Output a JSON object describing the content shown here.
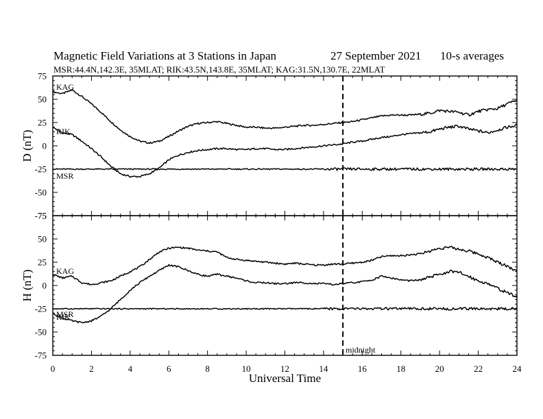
{
  "header": {
    "title": "Magnetic Field Variations at 3 Stations in Japan",
    "date": "27 September 2021",
    "averages": "10-s averages",
    "stations": "MSR:44.4N,142.3E, 35MLAT;  RIK:43.5N,143.8E, 35MLAT;  KAG:31.5N,130.7E, 22MLAT"
  },
  "chart_data": [
    {
      "type": "line",
      "panel": "D",
      "ylabel": "D (nT)",
      "xlim": [
        0,
        24
      ],
      "ylim": [
        -75,
        75
      ],
      "yticks": [
        75,
        50,
        25,
        0,
        -25,
        -50,
        -75
      ],
      "xticks": [],
      "marker": {
        "x": 15,
        "label": ""
      },
      "series": [
        {
          "name": "KAG",
          "x": [
            0,
            0.5,
            1,
            1.5,
            2,
            2.5,
            3,
            3.5,
            4,
            4.5,
            5,
            5.5,
            6,
            6.5,
            7,
            7.5,
            8,
            8.5,
            9,
            9.5,
            10,
            10.5,
            11,
            11.5,
            12,
            12.5,
            13,
            13.5,
            14,
            14.5,
            15,
            15.5,
            16,
            16.5,
            17,
            17.5,
            18,
            18.5,
            19,
            19.5,
            20,
            20.5,
            21,
            21.5,
            22,
            22.5,
            23,
            23.5,
            24
          ],
          "values": [
            58,
            56,
            60,
            53,
            45,
            36,
            26,
            17,
            10,
            5,
            3,
            5,
            10,
            16,
            21,
            24,
            25,
            26,
            24,
            22,
            20,
            20,
            19,
            19,
            20,
            21,
            22,
            22,
            23,
            24,
            25,
            26,
            28,
            30,
            32,
            33,
            33,
            33,
            34,
            35,
            38,
            37,
            36,
            33,
            37,
            39,
            40,
            45,
            49
          ]
        },
        {
          "name": "RIK",
          "x": [
            0,
            0.5,
            1,
            1.5,
            2,
            2.5,
            3,
            3.5,
            4,
            4.5,
            5,
            5.5,
            6,
            6.5,
            7,
            7.5,
            8,
            8.5,
            9,
            9.5,
            10,
            10.5,
            11,
            11.5,
            12,
            12.5,
            13,
            13.5,
            14,
            14.5,
            15,
            15.5,
            16,
            16.5,
            17,
            17.5,
            18,
            18.5,
            19,
            19.5,
            20,
            20.5,
            21,
            21.5,
            22,
            22.5,
            23,
            23.5,
            24
          ],
          "values": [
            20,
            14,
            12,
            5,
            -3,
            -12,
            -22,
            -30,
            -33,
            -33,
            -30,
            -24,
            -15,
            -10,
            -7,
            -5,
            -4,
            -3,
            -3,
            -4,
            -4,
            -3,
            -3,
            -4,
            -4,
            -3,
            -2,
            -1,
            0,
            1,
            2,
            4,
            5,
            7,
            9,
            10,
            12,
            13,
            14,
            15,
            18,
            20,
            21,
            18,
            16,
            14,
            17,
            20,
            22
          ]
        },
        {
          "name": "MSR",
          "x": [
            0,
            2,
            4,
            6,
            8,
            10,
            12,
            14,
            16,
            18,
            20,
            22,
            24
          ],
          "values": [
            -25,
            -25,
            -25,
            -25,
            -25,
            -25,
            -25,
            -25,
            -25,
            -25,
            -25,
            -25,
            -25
          ]
        }
      ]
    },
    {
      "type": "line",
      "panel": "H",
      "ylabel": "H (nT)",
      "xlabel": "Universal Time",
      "xlim": [
        0,
        24
      ],
      "ylim": [
        -75,
        75
      ],
      "yticks": [
        75,
        50,
        25,
        0,
        -25,
        -50,
        -75
      ],
      "xticks": [
        0,
        2,
        4,
        6,
        8,
        10,
        12,
        14,
        16,
        18,
        20,
        22,
        24
      ],
      "marker": {
        "x": 15,
        "label": "midnight"
      },
      "series": [
        {
          "name": "KAG",
          "x": [
            0,
            0.5,
            1,
            1.5,
            2,
            2.5,
            3,
            3.5,
            4,
            4.5,
            5,
            5.5,
            6,
            6.5,
            7,
            7.5,
            8,
            8.5,
            9,
            9.5,
            10,
            10.5,
            11,
            11.5,
            12,
            12.5,
            13,
            13.5,
            14,
            14.5,
            15,
            15.5,
            16,
            16.5,
            17,
            17.5,
            18,
            18.5,
            19,
            19.5,
            20,
            20.5,
            21,
            21.5,
            22,
            22.5,
            23,
            23.5,
            24
          ],
          "values": [
            12,
            8,
            10,
            3,
            1,
            3,
            5,
            10,
            15,
            20,
            28,
            36,
            40,
            41,
            40,
            38,
            37,
            36,
            30,
            28,
            27,
            26,
            25,
            24,
            23,
            24,
            23,
            22,
            22,
            23,
            23,
            24,
            25,
            27,
            31,
            32,
            32,
            33,
            34,
            37,
            40,
            41,
            39,
            37,
            34,
            30,
            25,
            21,
            15
          ]
        },
        {
          "name": "RIK",
          "x": [
            0,
            0.5,
            1,
            1.5,
            2,
            2.5,
            3,
            3.5,
            4,
            4.5,
            5,
            5.5,
            6,
            6.5,
            7,
            7.5,
            8,
            8.5,
            9,
            9.5,
            10,
            10.5,
            11,
            11.5,
            12,
            12.5,
            13,
            13.5,
            14,
            14.5,
            15,
            15.5,
            16,
            16.5,
            17,
            17.5,
            18,
            18.5,
            19,
            19.5,
            20,
            20.5,
            21,
            21.5,
            22,
            22.5,
            23,
            23.5,
            24
          ],
          "values": [
            -30,
            -35,
            -38,
            -40,
            -38,
            -33,
            -25,
            -15,
            -5,
            3,
            10,
            16,
            22,
            20,
            16,
            12,
            10,
            12,
            10,
            8,
            5,
            3,
            3,
            2,
            2,
            3,
            3,
            2,
            2,
            1,
            2,
            3,
            4,
            6,
            10,
            8,
            6,
            5,
            6,
            9,
            12,
            15,
            14,
            10,
            5,
            2,
            -3,
            -8,
            -12
          ]
        },
        {
          "name": "MSR",
          "x": [
            0,
            2,
            4,
            6,
            8,
            10,
            12,
            14,
            16,
            18,
            20,
            22,
            24
          ],
          "values": [
            -25,
            -25,
            -25,
            -25,
            -25,
            -25,
            -25,
            -25,
            -25,
            -25,
            -25,
            -25,
            -25
          ]
        }
      ]
    }
  ]
}
